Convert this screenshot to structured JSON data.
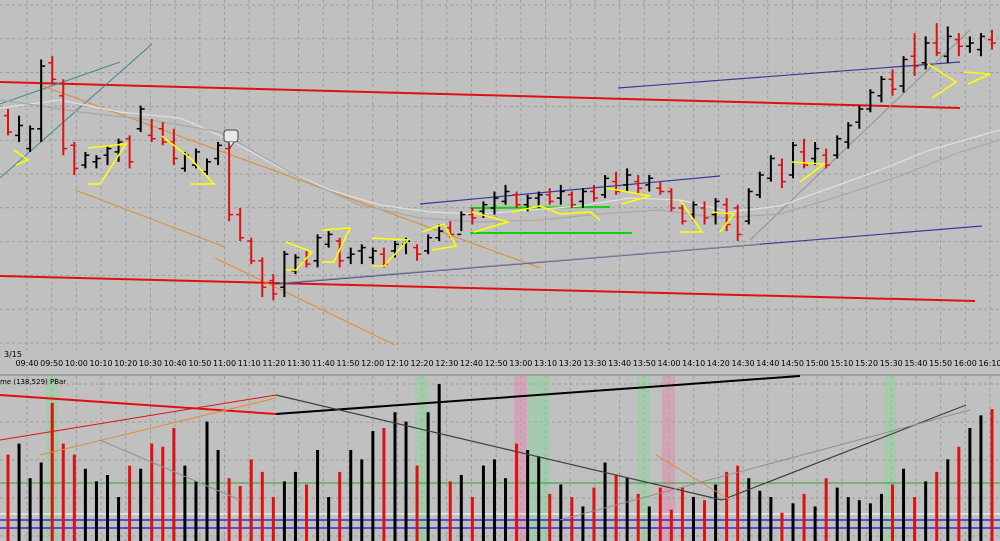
{
  "chart_data": {
    "type": "bar",
    "date_label": "3/15",
    "time_ticks": [
      "09:40",
      "09:50",
      "10:00",
      "10:10",
      "10:20",
      "10:30",
      "10:40",
      "10:50",
      "11:00",
      "11:10",
      "11:20",
      "11:30",
      "11:40",
      "11:50",
      "12:00",
      "12:10",
      "12:20",
      "12:30",
      "12:40",
      "12:50",
      "13:00",
      "13:10",
      "13:20",
      "13:30",
      "13:40",
      "13:50",
      "14:00",
      "14:10",
      "14:20",
      "14:30",
      "14:40",
      "14:50",
      "15:00",
      "15:10",
      "15:20",
      "15:30",
      "15:40",
      "15:50",
      "16:00",
      "16:10"
    ],
    "price_panel": {
      "ylim": [
        0,
        100
      ],
      "bars": [
        [
          70,
          62,
          68,
          63
        ],
        [
          68,
          60,
          62,
          65
        ],
        [
          65,
          57,
          58,
          64
        ],
        [
          85,
          60,
          64,
          83
        ],
        [
          86,
          78,
          84,
          79
        ],
        [
          79,
          56,
          74,
          58
        ],
        [
          60,
          50,
          59,
          52
        ],
        [
          57,
          52,
          53,
          56
        ],
        [
          56,
          52,
          54,
          55
        ],
        [
          59,
          53,
          56,
          58
        ],
        [
          61,
          54,
          57,
          60
        ],
        [
          62,
          52,
          61,
          54
        ],
        [
          71,
          63,
          64,
          70
        ],
        [
          67,
          60,
          62,
          61
        ],
        [
          66,
          59,
          64,
          60
        ],
        [
          64,
          53,
          60,
          55
        ],
        [
          57,
          51,
          52,
          56
        ],
        [
          58,
          52,
          53,
          57
        ],
        [
          55,
          50,
          51,
          54
        ],
        [
          60,
          53,
          55,
          59
        ],
        [
          61,
          36,
          58,
          38
        ],
        [
          40,
          30,
          38,
          31
        ],
        [
          31,
          23,
          30,
          24
        ],
        [
          25,
          13,
          24,
          16
        ],
        [
          20,
          12,
          18,
          14
        ],
        [
          27,
          13,
          16,
          26
        ],
        [
          26,
          20,
          21,
          25
        ],
        [
          27,
          22,
          24,
          23
        ],
        [
          32,
          22,
          24,
          31
        ],
        [
          33,
          28,
          29,
          32
        ],
        [
          31,
          22,
          30,
          24
        ],
        [
          28,
          23,
          25,
          26
        ],
        [
          29,
          23,
          27,
          28
        ],
        [
          28,
          23,
          25,
          27
        ],
        [
          28,
          22,
          26,
          23
        ],
        [
          30,
          25,
          27,
          29
        ],
        [
          31,
          26,
          29,
          30
        ],
        [
          29,
          24,
          28,
          26
        ],
        [
          32,
          26,
          27,
          31
        ],
        [
          35,
          30,
          31,
          33
        ],
        [
          36,
          31,
          34,
          32
        ],
        [
          39,
          33,
          32,
          38
        ],
        [
          40,
          35,
          38,
          37
        ],
        [
          42,
          37,
          39,
          41
        ],
        [
          45,
          38,
          40,
          43
        ],
        [
          47,
          41,
          42,
          45
        ],
        [
          45,
          40,
          44,
          41
        ],
        [
          44,
          39,
          41,
          43
        ],
        [
          45,
          40,
          43,
          44
        ],
        [
          46,
          41,
          44,
          42
        ],
        [
          47,
          41,
          43,
          45
        ],
        [
          45,
          40,
          44,
          41
        ],
        [
          46,
          40,
          42,
          45
        ],
        [
          47,
          42,
          45,
          43
        ],
        [
          50,
          43,
          44,
          49
        ],
        [
          51,
          44,
          48,
          45
        ],
        [
          52,
          45,
          47,
          50
        ],
        [
          50,
          44,
          48,
          46
        ],
        [
          50,
          45,
          47,
          49
        ],
        [
          48,
          44,
          46,
          45
        ],
        [
          46,
          39,
          45,
          40
        ],
        [
          41,
          35,
          40,
          36
        ],
        [
          42,
          36,
          38,
          41
        ],
        [
          42,
          35,
          40,
          37
        ],
        [
          43,
          35,
          38,
          42
        ],
        [
          43,
          33,
          41,
          35
        ],
        [
          41,
          30,
          40,
          32
        ],
        [
          46,
          35,
          36,
          45
        ],
        [
          51,
          43,
          44,
          50
        ],
        [
          56,
          48,
          49,
          55
        ],
        [
          55,
          46,
          53,
          48
        ],
        [
          60,
          49,
          50,
          59
        ],
        [
          61,
          52,
          57,
          53
        ],
        [
          60,
          53,
          55,
          58
        ],
        [
          58,
          52,
          56,
          53
        ],
        [
          62,
          55,
          56,
          61
        ],
        [
          66,
          58,
          60,
          65
        ],
        [
          71,
          64,
          66,
          70
        ],
        [
          76,
          69,
          70,
          75
        ],
        [
          80,
          72,
          74,
          79
        ],
        [
          82,
          74,
          79,
          76
        ],
        [
          86,
          75,
          77,
          85
        ],
        [
          93,
          80,
          86,
          83
        ],
        [
          92,
          82,
          84,
          90
        ],
        [
          96,
          86,
          90,
          87
        ],
        [
          95,
          84,
          86,
          92
        ],
        [
          93,
          86,
          91,
          89
        ],
        [
          92,
          87,
          89,
          90
        ],
        [
          93,
          86,
          88,
          92
        ],
        [
          94,
          88,
          91,
          90
        ]
      ]
    },
    "volume_panel": {
      "title": "me (138,529) PBar",
      "ylim": [
        0,
        100
      ],
      "values": [
        55,
        62,
        40,
        50,
        88,
        62,
        55,
        46,
        38,
        42,
        28,
        48,
        46,
        62,
        60,
        72,
        48,
        38,
        76,
        58,
        40,
        35,
        52,
        44,
        28,
        38,
        44,
        36,
        58,
        28,
        44,
        58,
        52,
        70,
        72,
        82,
        76,
        48,
        82,
        100,
        38,
        42,
        28,
        48,
        52,
        40,
        62,
        58,
        54,
        30,
        36,
        28,
        22,
        34,
        50,
        42,
        40,
        30,
        22,
        34,
        20,
        34,
        28,
        26,
        36,
        44,
        48,
        40,
        32,
        28,
        18,
        24,
        30,
        22,
        40,
        34,
        28,
        26,
        24,
        30,
        36,
        46,
        28,
        38,
        44,
        52,
        60,
        72,
        80,
        84
      ]
    }
  }
}
